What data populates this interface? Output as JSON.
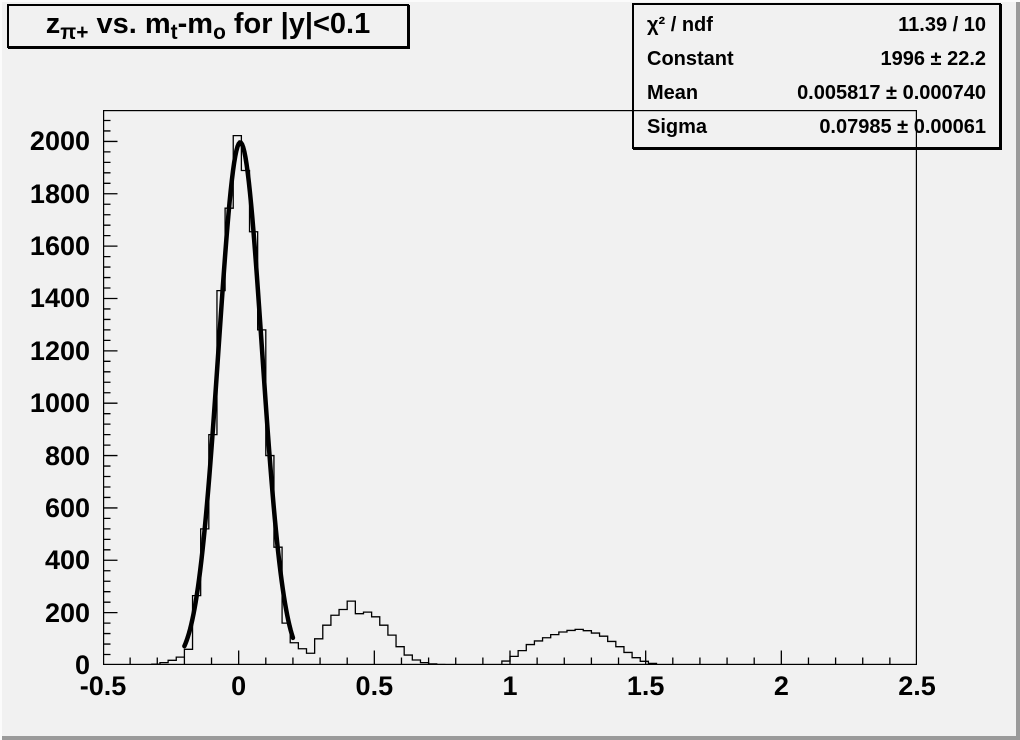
{
  "canvas": {
    "bg": "#f1f1f1",
    "line_color": "#000000"
  },
  "title": {
    "text": "z_{π+} vs. m_{t}-m_{o} for |y|<0.1",
    "segments": [
      {
        "t": "z"
      },
      {
        "t": "π+",
        "sub": true
      },
      {
        "t": " vs. m"
      },
      {
        "t": "t",
        "sub": true
      },
      {
        "t": "-m"
      },
      {
        "t": "o",
        "sub": true
      },
      {
        "t": " for |y|<0.1"
      }
    ]
  },
  "stats": {
    "rows": [
      {
        "label": "χ² / ndf",
        "value": "11.39 / 10"
      },
      {
        "label": "Constant",
        "value": "1996 ± 22.2"
      },
      {
        "label": "Mean",
        "value": "0.005817 ± 0.000740"
      },
      {
        "label": "Sigma",
        "value": "0.07985 ± 0.00061"
      }
    ]
  },
  "chart_data": {
    "type": "bar",
    "subtype": "step-histogram",
    "title": "z_π+ vs. m_t-m_o for |y|<0.1",
    "xlabel": "",
    "ylabel": "",
    "xlim": [
      -0.5,
      2.5
    ],
    "ylim": [
      0,
      2120
    ],
    "grid": false,
    "legend_position": "none",
    "bin_start": -0.5,
    "bin_width": 0.03,
    "n_bins": 100,
    "values": [
      0,
      0,
      0,
      0,
      0,
      0,
      3,
      9,
      18,
      30,
      60,
      265,
      520,
      880,
      1430,
      1745,
      2022,
      1889,
      1655,
      1280,
      800,
      450,
      160,
      85,
      62,
      45,
      100,
      152,
      190,
      212,
      244,
      196,
      202,
      184,
      152,
      114,
      70,
      38,
      19,
      9,
      4,
      2,
      1,
      0,
      0,
      0,
      0,
      0,
      0,
      15,
      33,
      55,
      78,
      92,
      104,
      116,
      126,
      132,
      136,
      131,
      122,
      110,
      90,
      70,
      48,
      28,
      14,
      6,
      0,
      0,
      0,
      0,
      0,
      0,
      0,
      0,
      0,
      0,
      0,
      0,
      0,
      0,
      0,
      0,
      0,
      0,
      0,
      0,
      0,
      0,
      0,
      0,
      0,
      0,
      0,
      0,
      0,
      0,
      0,
      0
    ],
    "x_major_ticks": [
      -0.5,
      0,
      0.5,
      1,
      1.5,
      2,
      2.5
    ],
    "x_major_labels": [
      "-0.5",
      "0",
      "0.5",
      "1",
      "1.5",
      "2",
      "2.5"
    ],
    "x_minor_step": 0.1,
    "y_major_step": 200,
    "y_label_max": 2000,
    "y_minor_step": 40,
    "fit": {
      "type": "gaussian",
      "constant": 1996,
      "mean": 0.005817,
      "sigma": 0.07985,
      "range": [
        -0.2,
        0.2
      ]
    }
  }
}
